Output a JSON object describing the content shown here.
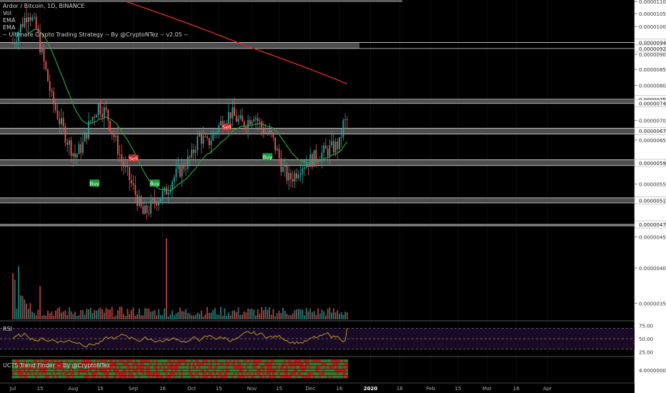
{
  "header": {
    "symbol_line": "Ardor / Bitcoin, 1D, BINANCE",
    "indicators": [
      "Vol",
      "EMA",
      "EMA",
      "-- Ultimate Crypto Trading Strategy -- By @CryptoNTez -- v2.05 --"
    ]
  },
  "panels": {
    "rsi_label": "RSI",
    "trend_label": "UCTS Trend Finder -- By @CryptoNTez"
  },
  "colors": {
    "background": "#000000",
    "bull": "#26a69a",
    "bear": "#ef5350",
    "ema_fast": "#2e9e3e",
    "ema_slow": "#d42a2a",
    "rsi_line": "#c9a227",
    "rsi_bg": "#1a0a26",
    "zone": "#d9d9d9"
  },
  "chart_data": {
    "type": "candlestick",
    "title": "Ardor / Bitcoin, 1D, BINANCE",
    "ylim": [
      3.3e-06,
      1.1e-05
    ],
    "y_ticks": [
      "0.00001100",
      "0.00001050",
      "0.00001000",
      "0.00000900",
      "0.00000850",
      "0.00000800",
      "0.00000700",
      "0.00000650",
      "0.00000600",
      "0.00000550",
      "0.00000450",
      "0.00000400",
      "0.00000350"
    ],
    "price_labels": [
      "0.00000941",
      "0.00000920",
      "0.00000759",
      "0.00000747",
      "0.00000673",
      "0.00000596",
      "0.00000517",
      "0.00000472"
    ],
    "x_ticks": [
      "Jul",
      "15",
      "Aug",
      "15",
      "Sep",
      "16",
      "Oct",
      "15",
      "Nov",
      "15",
      "Dec",
      "16",
      "2020",
      "16",
      "Feb",
      "15",
      "Mar",
      "16",
      "Apr"
    ],
    "levels": [
      {
        "value": 9.41e-06,
        "band": [
          9.2e-06,
          9.41e-06
        ],
        "extended": true
      },
      {
        "value": 7.59e-06,
        "band": [
          7.47e-06,
          7.59e-06
        ]
      },
      {
        "value": 6.73e-06,
        "band": [
          6.65e-06,
          6.8e-06
        ]
      },
      {
        "value": 5.96e-06,
        "band": [
          5.9e-06,
          6.03e-06
        ]
      },
      {
        "value": 5.17e-06,
        "band": [
          5.12e-06,
          5.22e-06
        ]
      },
      {
        "value": 4.72e-06,
        "band": [
          4.72e-06,
          4.72e-06
        ]
      }
    ],
    "signals": [
      {
        "label": "Buy",
        "x": "Aug 12",
        "value": 5.52e-06
      },
      {
        "label": "Sell",
        "x": "Sep 1",
        "value": 6.07e-06
      },
      {
        "label": "Buy",
        "x": "Sep 12",
        "value": 5.52e-06
      },
      {
        "label": "Sell",
        "x": "Oct 19",
        "value": 6.83e-06
      },
      {
        "label": "Buy",
        "x": "Nov 9",
        "value": 6.1e-06
      }
    ],
    "ema_slow_last": 7.9e-06,
    "rsi": {
      "levels": [
        70,
        50,
        30
      ],
      "ylim": [
        20,
        80
      ],
      "last": 70
    },
    "trend_finder": {
      "tick": "4.00000000"
    }
  }
}
